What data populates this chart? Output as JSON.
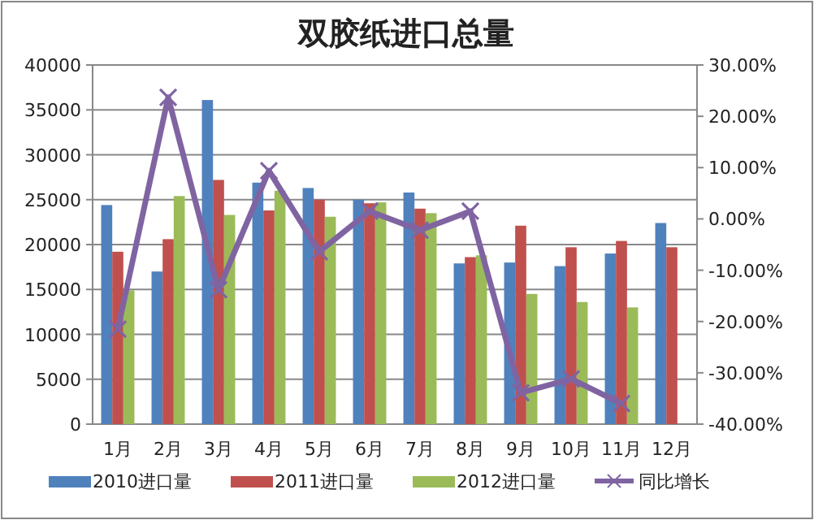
{
  "chart_data": {
    "type": "bar",
    "title": "双胶纸进口总量",
    "categories": [
      "1月",
      "2月",
      "3月",
      "4月",
      "5月",
      "6月",
      "7月",
      "8月",
      "9月",
      "10月",
      "11月",
      "12月"
    ],
    "series": [
      {
        "name": "2010进口量",
        "color": "#4f81bd",
        "values": [
          24400,
          17000,
          36100,
          26900,
          26300,
          25000,
          25800,
          17900,
          18000,
          17600,
          19000,
          22400
        ]
      },
      {
        "name": "2011进口量",
        "color": "#c0504d",
        "values": [
          19200,
          20600,
          27200,
          23800,
          25000,
          24600,
          24000,
          18600,
          22100,
          19700,
          20400,
          19700
        ]
      },
      {
        "name": "2012进口量",
        "color": "#9bbb59",
        "values": [
          14900,
          25400,
          23300,
          26000,
          23100,
          24700,
          23500,
          18800,
          14500,
          13600,
          13000,
          null
        ]
      },
      {
        "name": "同比增长",
        "type": "line",
        "axis": "y2",
        "color": "#8064a2",
        "marker": "cross",
        "values": [
          -21.5,
          23.7,
          -13.8,
          9.4,
          -6.4,
          1.5,
          -2.2,
          1.5,
          -33.9,
          -31.2,
          -36.0,
          null
        ]
      }
    ],
    "ylim": [
      0,
      40000
    ],
    "yticks": [
      0,
      5000,
      10000,
      15000,
      20000,
      25000,
      30000,
      35000,
      40000
    ],
    "y2lim": [
      -40,
      30
    ],
    "y2ticks": [
      {
        "value": -40,
        "label": "-40.00%"
      },
      {
        "value": -30,
        "label": "-30.00%"
      },
      {
        "value": -20,
        "label": "-20.00%"
      },
      {
        "value": -10,
        "label": "-10.00%"
      },
      {
        "value": 0,
        "label": "0.00%"
      },
      {
        "value": 10,
        "label": "10.00%"
      },
      {
        "value": 20,
        "label": "20.00%"
      },
      {
        "value": 30,
        "label": "30.00%"
      }
    ],
    "grid": "y",
    "legend": "bottom"
  }
}
